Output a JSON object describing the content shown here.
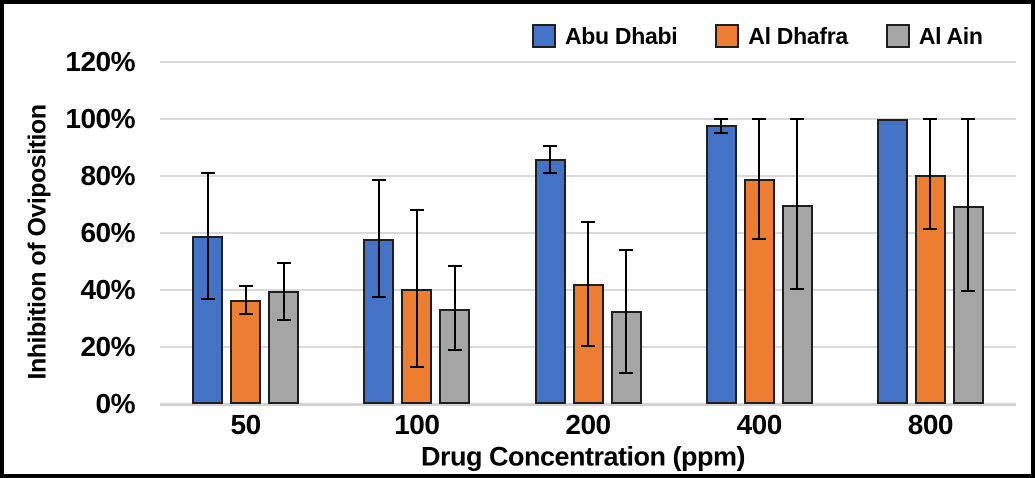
{
  "chart_data": {
    "type": "bar",
    "title": "",
    "xlabel": "Drug Concentration (ppm)",
    "ylabel": "Inhibition of Oviposition",
    "categories": [
      "50",
      "100",
      "200",
      "400",
      "800"
    ],
    "ylim": [
      0,
      120
    ],
    "yticks": [
      0,
      20,
      40,
      60,
      80,
      100,
      120
    ],
    "ytick_labels": [
      "0%",
      "20%",
      "40%",
      "60%",
      "80%",
      "100%",
      "120%"
    ],
    "grid": true,
    "legend_position": "top",
    "series": [
      {
        "name": "Abu Dhabi",
        "color": "#4472C4",
        "values": [
          59,
          58,
          86,
          98,
          100
        ],
        "error_high": [
          81,
          78.5,
          90.5,
          100,
          null
        ],
        "error_low": [
          37,
          37.5,
          81,
          95,
          null
        ]
      },
      {
        "name": "Al Dhafra",
        "color": "#ED7D31",
        "values": [
          36.5,
          40.5,
          42,
          79,
          80.5
        ],
        "error_high": [
          41.5,
          68,
          64,
          100,
          100
        ],
        "error_low": [
          31.5,
          13,
          20.5,
          58,
          61.5
        ]
      },
      {
        "name": "Al Ain",
        "color": "#A5A5A5",
        "values": [
          39.5,
          33.5,
          32.5,
          70,
          69.5
        ],
        "error_high": [
          49.5,
          48.5,
          54,
          100,
          100
        ],
        "error_low": [
          29.5,
          19,
          11,
          40.5,
          39.5
        ]
      }
    ],
    "bar_outline_color": "#1F1F1F",
    "error_bar_color": "#000000",
    "gridline_color": "#D9D9D9"
  }
}
